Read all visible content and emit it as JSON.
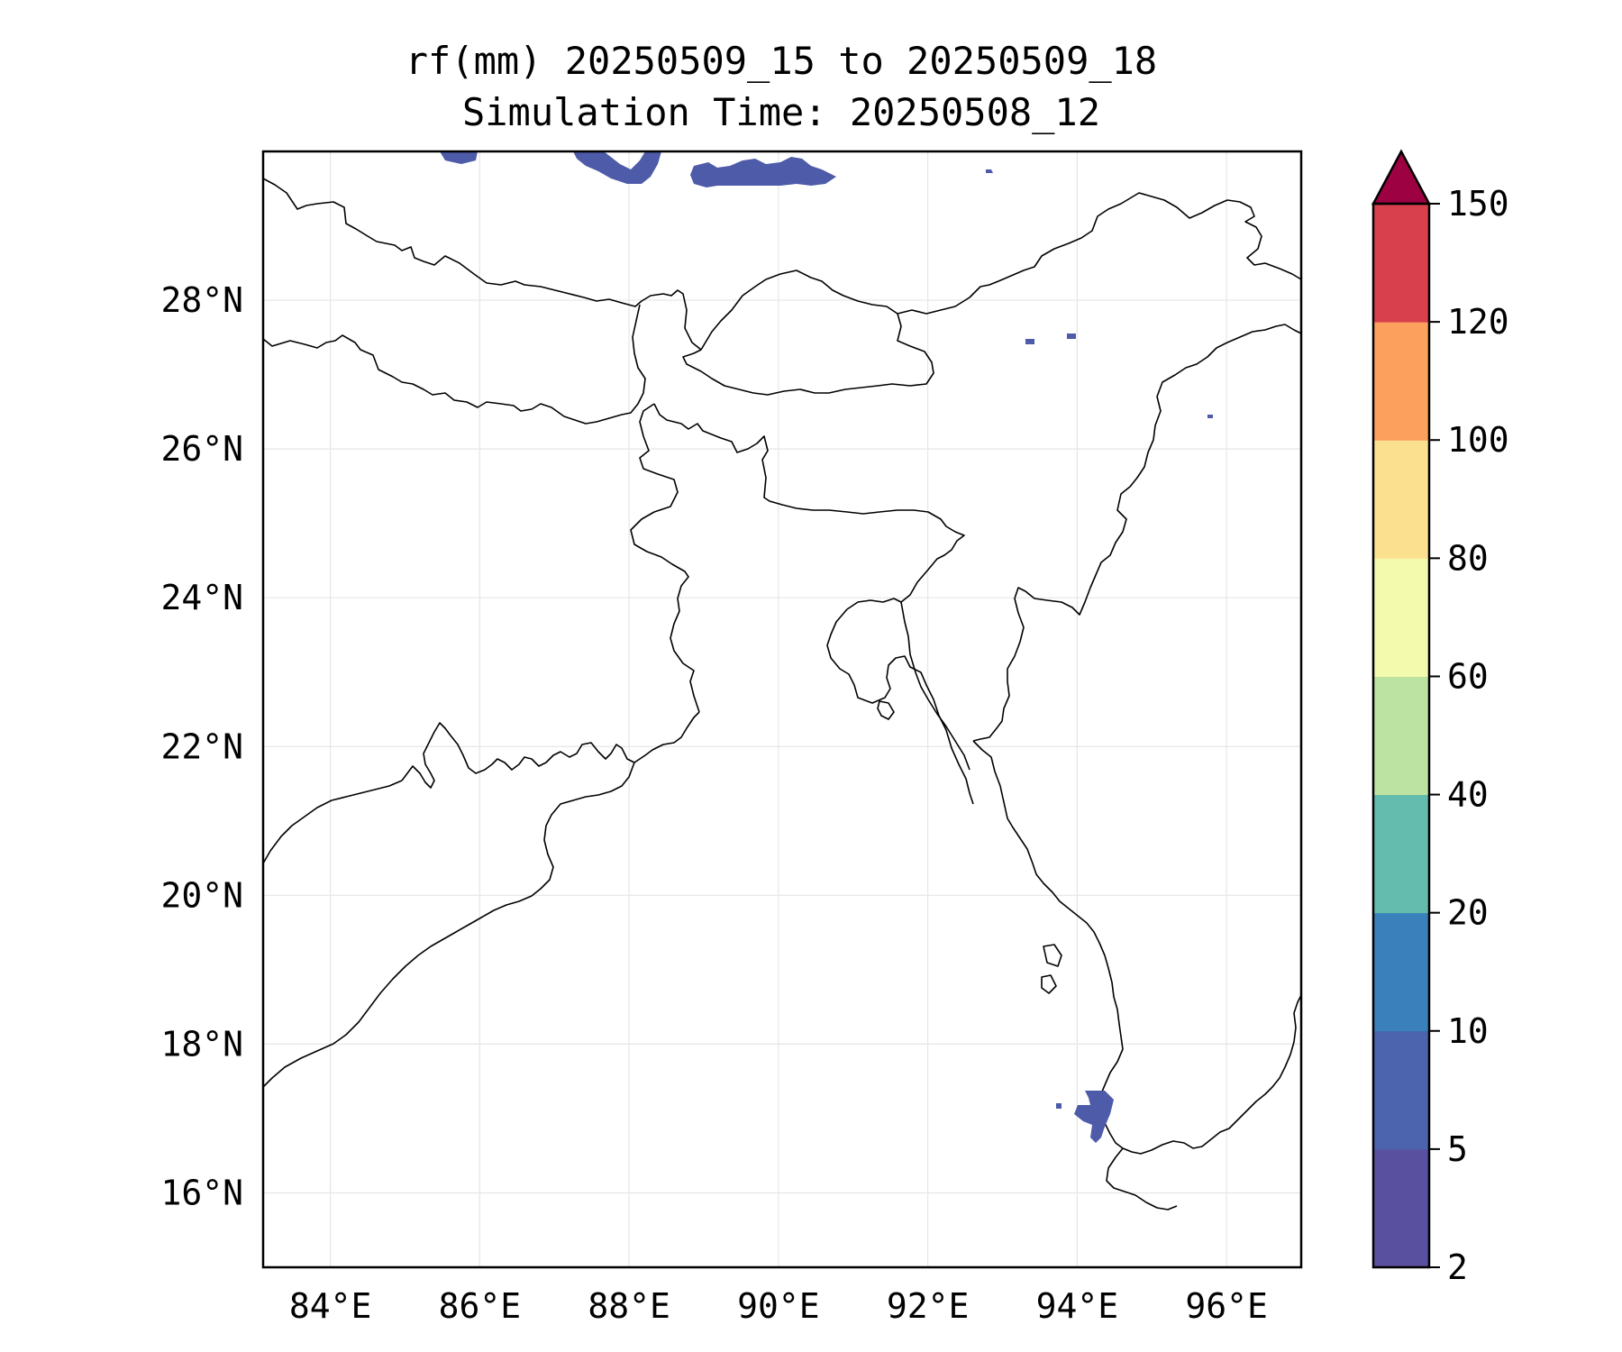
{
  "title": {
    "line1": "rf(mm) 20250509_15 to 20250509_18",
    "line2": "Simulation Time: 20250508_12"
  },
  "map": {
    "lon_range": [
      83.1,
      97.0
    ],
    "lat_range": [
      15.0,
      30.0
    ],
    "x_ticks": [
      84,
      86,
      88,
      90,
      92,
      94,
      96
    ],
    "y_ticks": [
      16,
      18,
      20,
      22,
      24,
      26,
      28
    ],
    "x_tick_labels": [
      "84°E",
      "86°E",
      "88°E",
      "90°E",
      "92°E",
      "94°E",
      "96°E"
    ],
    "y_tick_labels": [
      "16°N",
      "18°N",
      "20°N",
      "22°N",
      "24°N",
      "26°N",
      "28°N"
    ],
    "gridlines": true,
    "gridline_color": "#e6e6e6",
    "rain_color": "#4d5ba8"
  },
  "colorbar": {
    "labels": [
      "2",
      "5",
      "10",
      "20",
      "40",
      "60",
      "80",
      "100",
      "120",
      "150"
    ],
    "colors": [
      "#5a50a0",
      "#4c63ad",
      "#3a80bb",
      "#63bcad",
      "#bde3a2",
      "#f3faad",
      "#fbe08f",
      "#fba05d",
      "#d8404e"
    ],
    "extend_color": "#9e0142",
    "extend": "max"
  }
}
